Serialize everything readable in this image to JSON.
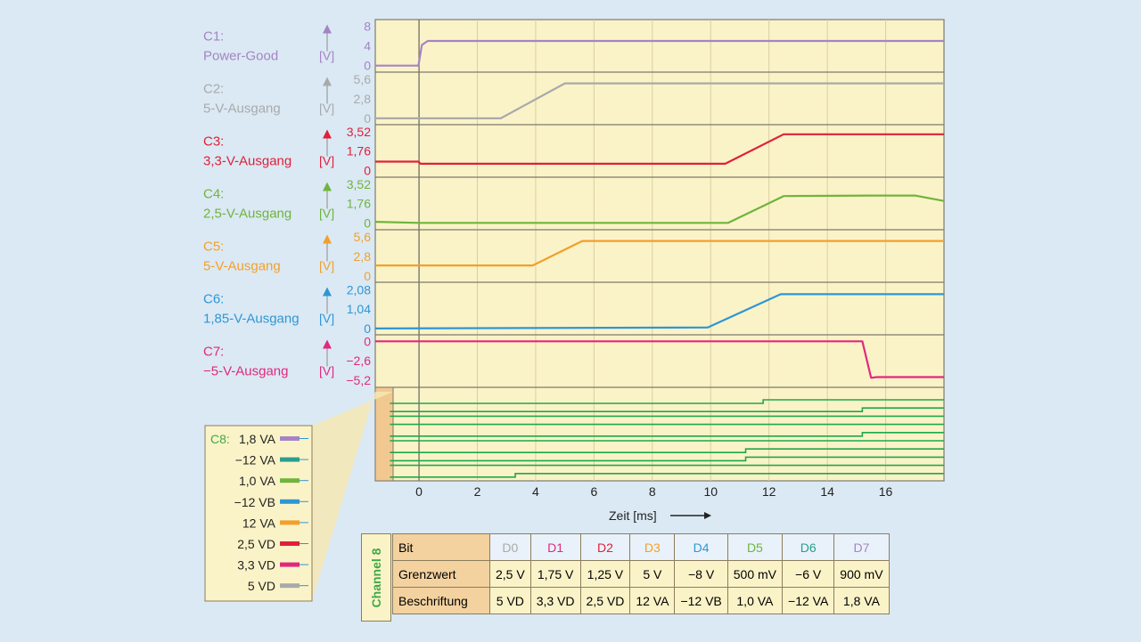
{
  "chart_data": {
    "type": "line",
    "xlabel": "Zeit [ms]",
    "xlim": [
      -1.5,
      18
    ],
    "xticks": [
      0,
      2,
      4,
      6,
      8,
      10,
      12,
      14,
      16
    ],
    "xticklabels": [
      "0",
      "2",
      "4",
      "6",
      "8",
      "10",
      "12",
      "14",
      "16"
    ],
    "grid": true,
    "analog_channels": [
      {
        "id": "C1:",
        "name": "Power-Good",
        "unit": "[V]",
        "color": "#a484c4",
        "ticks": [
          "8",
          "4",
          "0"
        ],
        "tick_values": [
          8,
          4,
          0
        ],
        "ylim": [
          -0.6,
          8.6
        ],
        "x": [
          -1.5,
          -0.02,
          0.1,
          0.3,
          18
        ],
        "y": [
          0,
          0,
          4.2,
          5.0,
          5.0
        ]
      },
      {
        "id": "C2:",
        "name": "5-V-Ausgang",
        "unit": "[V]",
        "color": "#a8aaaa",
        "ticks": [
          "5,6",
          "2,8",
          "0"
        ],
        "tick_values": [
          5.6,
          2.8,
          0
        ],
        "ylim": [
          -0.4,
          6.1
        ],
        "x": [
          -1.5,
          2.8,
          5.0,
          18
        ],
        "y": [
          0,
          0,
          5.0,
          5.0
        ]
      },
      {
        "id": "C3:",
        "name": "3,3-V-Ausgang",
        "unit": "[V]",
        "color": "#e0203a",
        "ticks": [
          "3,52",
          "1,76",
          "0"
        ],
        "tick_values": [
          3.52,
          1.76,
          0
        ],
        "ylim": [
          -0.3,
          3.85
        ],
        "x": [
          -1.5,
          -0.02,
          0.05,
          10.5,
          12.5,
          18
        ],
        "y": [
          0.8,
          0.8,
          0.6,
          0.6,
          3.3,
          3.3
        ]
      },
      {
        "id": "C4:",
        "name": "2,5-V-Ausgang",
        "unit": "[V]",
        "color": "#6fb43c",
        "ticks": [
          "3,52",
          "1,76",
          "0"
        ],
        "tick_values": [
          3.52,
          1.76,
          0
        ],
        "ylim": [
          -0.3,
          3.85
        ],
        "x": [
          -1.5,
          0,
          10.6,
          12.5,
          15.5,
          17,
          18
        ],
        "y": [
          0.1,
          0.0,
          0.0,
          2.45,
          2.5,
          2.5,
          2.0
        ]
      },
      {
        "id": "C5:",
        "name": "5-V-Ausgang",
        "unit": "[V]",
        "color": "#f2a02a",
        "ticks": [
          "5,6",
          "2,8",
          "0"
        ],
        "tick_values": [
          5.6,
          2.8,
          0
        ],
        "ylim": [
          -0.4,
          6.1
        ],
        "x": [
          -1.5,
          3.9,
          5.6,
          18
        ],
        "y": [
          1.5,
          1.5,
          5.0,
          5.0
        ]
      },
      {
        "id": "C6:",
        "name": "1,85-V-Ausgang",
        "unit": "[V]",
        "color": "#2e96d4",
        "ticks": [
          "2,08",
          "1,04",
          "0"
        ],
        "tick_values": [
          2.08,
          1.04,
          0
        ],
        "ylim": [
          -0.15,
          2.3
        ],
        "x": [
          -1.5,
          9.9,
          12.4,
          15.3,
          18
        ],
        "y": [
          0.0,
          0.05,
          1.85,
          1.85,
          1.85
        ]
      },
      {
        "id": "C7:",
        "name": "−5-V-Ausgang",
        "unit": "[V]",
        "color": "#e2287e",
        "ticks": [
          "0",
          "−2,6",
          "−5,2"
        ],
        "tick_values": [
          0,
          -2.6,
          -5.2
        ],
        "ylim": [
          -5.7,
          0.4
        ],
        "x": [
          -1.5,
          15.2,
          15.5,
          15.7,
          18
        ],
        "y": [
          0,
          0,
          -4.9,
          -4.8,
          -4.8
        ]
      }
    ],
    "digital_bits": [
      {
        "bit": "D7",
        "label": "1,8 VA",
        "color": "#a484c4",
        "level_high": true
      },
      {
        "bit": "D6",
        "label": "−12 VA",
        "color": "#2a9e8e",
        "level_high": true
      },
      {
        "bit": "D5",
        "label": "1,0 VA",
        "color": "#6fb43c",
        "level_high": true
      },
      {
        "bit": "D4",
        "label": "−12 VB",
        "color": "#2e96d4",
        "level_high": true
      },
      {
        "bit": "D3",
        "label": "12 VA",
        "color": "#f2a02a",
        "level_high": true
      },
      {
        "bit": "D2",
        "label": "2,5 VD",
        "color": "#e0203a",
        "level_high": true
      },
      {
        "bit": "D1",
        "label": "3,3 VD",
        "color": "#e2287e",
        "level_high": true
      },
      {
        "bit": "D0",
        "label": "5 VD",
        "color": "#a8aaaa",
        "level_high": true
      }
    ],
    "digital_trace_color": "#1ea84a",
    "digital_transitions_ms": [
      {
        "row": 0,
        "t": 11.8,
        "dir": "up"
      },
      {
        "row": 1,
        "t": 15.2,
        "dir": "up"
      },
      {
        "row": 4,
        "t": 15.2,
        "dir": "up"
      },
      {
        "row": 6,
        "t": 11.2,
        "dir": "up"
      },
      {
        "row": 7,
        "t": 11.2,
        "dir": "up"
      },
      {
        "row": 9,
        "t": 3.3,
        "dir": "up"
      }
    ]
  },
  "legend": {
    "title": "C8:",
    "title_color": "#40a845",
    "items": [
      {
        "label": "1,8 VA",
        "color": "#a484c4"
      },
      {
        "label": "−12 VA",
        "color": "#2a9e8e"
      },
      {
        "label": "1,0 VA",
        "color": "#6fb43c"
      },
      {
        "label": "−12 VB",
        "color": "#2e96d4"
      },
      {
        "label": "12 VA",
        "color": "#f2a02a"
      },
      {
        "label": "2,5 VD",
        "color": "#e0203a"
      },
      {
        "label": "3,3 VD",
        "color": "#e2287e"
      },
      {
        "label": "5 VD",
        "color": "#a8aaaa"
      }
    ]
  },
  "table": {
    "side_label": "Channel 8",
    "row_labels": [
      "Bit",
      "Grenzwert",
      "Beschriftung"
    ],
    "columns": [
      {
        "bit": "D0",
        "color": "#a8aaaa",
        "grenzwert": "2,5 V",
        "beschriftung": "5 VD"
      },
      {
        "bit": "D1",
        "color": "#e2287e",
        "grenzwert": "1,75 V",
        "beschriftung": "3,3 VD"
      },
      {
        "bit": "D2",
        "color": "#e0203a",
        "grenzwert": "1,25 V",
        "beschriftung": "2,5 VD"
      },
      {
        "bit": "D3",
        "color": "#f2a02a",
        "grenzwert": "5 V",
        "beschriftung": "12 VA"
      },
      {
        "bit": "D4",
        "color": "#2e96d4",
        "grenzwert": "−8 V",
        "beschriftung": "−12 VB"
      },
      {
        "bit": "D5",
        "color": "#6fb43c",
        "grenzwert": "500 mV",
        "beschriftung": "1,0 VA"
      },
      {
        "bit": "D6",
        "color": "#2a9e8e",
        "grenzwert": "−6 V",
        "beschriftung": "−12 VA"
      },
      {
        "bit": "D7",
        "color": "#a484c4",
        "grenzwert": "900 mV",
        "beschriftung": "1,8 VA"
      }
    ]
  }
}
